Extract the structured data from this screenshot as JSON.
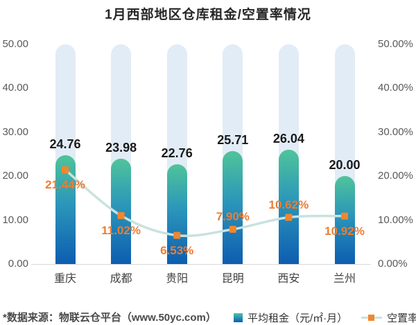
{
  "chart_data": {
    "type": "bar",
    "title": "1月西部地区仓库租金/空置率情况",
    "categories": [
      "重庆",
      "成都",
      "贵阳",
      "昆明",
      "西安",
      "兰州"
    ],
    "series": [
      {
        "name": "平均租金（元/㎡·月）",
        "type": "bar",
        "yaxis": "left",
        "values": [
          24.76,
          23.98,
          22.76,
          25.71,
          26.04,
          20.0
        ],
        "labels": [
          "24.76",
          "23.98",
          "22.76",
          "25.71",
          "26.04",
          "20.00"
        ]
      },
      {
        "name": "空置率",
        "type": "line",
        "yaxis": "right",
        "values": [
          21.44,
          11.02,
          6.53,
          7.9,
          10.62,
          10.92
        ],
        "labels": [
          "21.44%",
          "11.02%",
          "6.53%",
          "7.90%",
          "10.62%",
          "10.92%"
        ],
        "label_placement": [
          "below",
          "below",
          "below",
          "above",
          "above",
          "below"
        ]
      }
    ],
    "left_axis": {
      "min": 0,
      "max": 50,
      "ticks": [
        "0.00",
        "10.00",
        "20.00",
        "30.00",
        "40.00",
        "50.00"
      ]
    },
    "right_axis": {
      "min": 0,
      "max": 50,
      "ticks": [
        "0.00%",
        "10.00%",
        "20.00%",
        "30.00%",
        "40.00%",
        "50.00%"
      ]
    },
    "grid": false,
    "legend_position": "bottom-right"
  },
  "footer": {
    "source": "*数据来源：物联云仓平台（www.50yc.com）"
  },
  "colors": {
    "bar_gradient_top": "#4FC49A",
    "bar_gradient_mid": "#2B96BA",
    "bar_gradient_bottom": "#0D5DB0",
    "bar_track": "#E2ECF6",
    "line": "#C8E2DF",
    "marker": "#F1862C",
    "percent_label": "#ED7D31",
    "value_label": "#1A1A1A",
    "axis_label": "#595959",
    "category_label": "#404040",
    "title": "#262626",
    "footer": "#4A4A4A",
    "axis_line": "#D9D9D9"
  }
}
